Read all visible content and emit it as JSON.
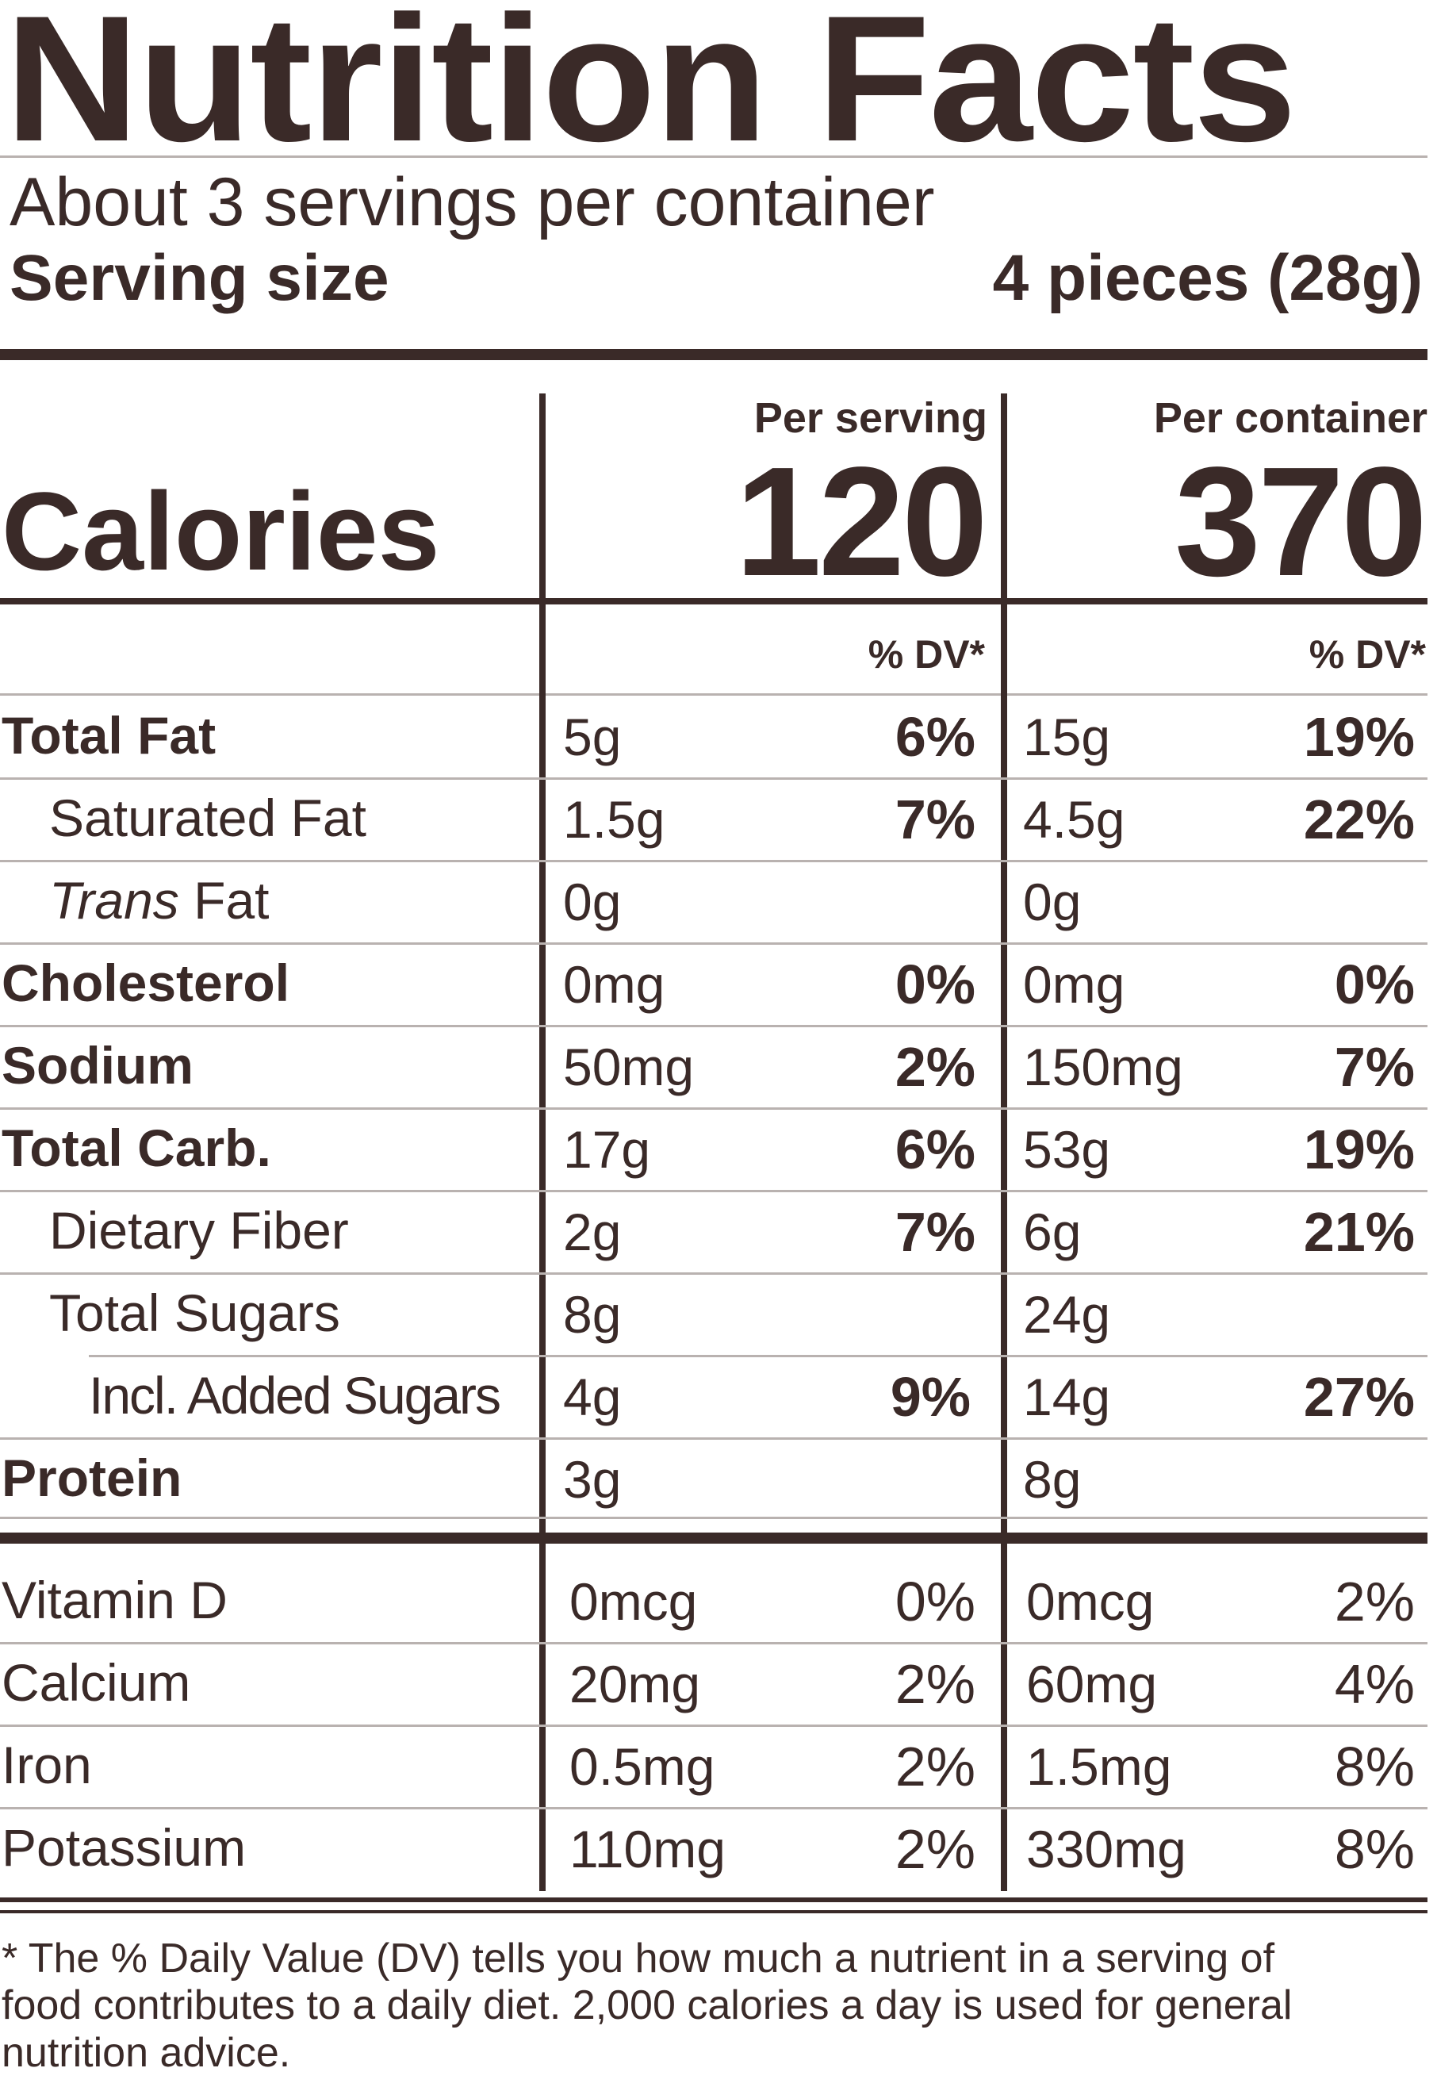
{
  "title": "Nutrition Facts",
  "servings_per_container": "About 3 servings per container",
  "serving_size": {
    "label": "Serving size",
    "value": "4 pieces (28g)"
  },
  "columns": {
    "per_serving": "Per serving",
    "per_container": "Per container",
    "dv": "% DV*"
  },
  "calories": {
    "label": "Calories",
    "per_serving": "120",
    "per_container": "370"
  },
  "nutrients": [
    {
      "name": "Total Fat",
      "serving_amount": "5g",
      "serving_dv": "6%",
      "container_amount": "15g",
      "container_dv": "19%"
    },
    {
      "name": "Saturated Fat",
      "serving_amount": "1.5g",
      "serving_dv": "7%",
      "container_amount": "4.5g",
      "container_dv": "22%"
    },
    {
      "name_italic": "Trans",
      "name_rest": " Fat",
      "serving_amount": "0g",
      "serving_dv": "",
      "container_amount": "0g",
      "container_dv": ""
    },
    {
      "name": "Cholesterol",
      "serving_amount": "0mg",
      "serving_dv": "0%",
      "container_amount": "0mg",
      "container_dv": "0%"
    },
    {
      "name": "Sodium",
      "serving_amount": "50mg",
      "serving_dv": "2%",
      "container_amount": "150mg",
      "container_dv": "7%"
    },
    {
      "name": "Total Carb.",
      "serving_amount": "17g",
      "serving_dv": "6%",
      "container_amount": "53g",
      "container_dv": "19%"
    },
    {
      "name": "Dietary Fiber",
      "serving_amount": "2g",
      "serving_dv": "7%",
      "container_amount": "6g",
      "container_dv": "21%"
    },
    {
      "name": "Total Sugars",
      "serving_amount": "8g",
      "serving_dv": "",
      "container_amount": "24g",
      "container_dv": ""
    },
    {
      "name": "Incl. Added Sugars",
      "serving_amount": "4g",
      "serving_dv": "9%",
      "container_amount": "14g",
      "container_dv": "27%"
    },
    {
      "name": "Protein",
      "serving_amount": "3g",
      "serving_dv": "",
      "container_amount": "8g",
      "container_dv": ""
    }
  ],
  "micronutrients": [
    {
      "name": "Vitamin D",
      "serving_amount": "0mcg",
      "serving_dv": "0%",
      "container_amount": "0mcg",
      "container_dv": "2%"
    },
    {
      "name": "Calcium",
      "serving_amount": "20mg",
      "serving_dv": "2%",
      "container_amount": "60mg",
      "container_dv": "4%"
    },
    {
      "name": "Iron",
      "serving_amount": "0.5mg",
      "serving_dv": "2%",
      "container_amount": "1.5mg",
      "container_dv": "8%"
    },
    {
      "name": "Potassium",
      "serving_amount": "110mg",
      "serving_dv": "2%",
      "container_amount": "330mg",
      "container_dv": "8%"
    }
  ],
  "footnote": "* The % Daily Value (DV) tells you how much a nutrient in a serving of food contributes to a daily diet. 2,000 calories a day is used for general nutrition advice.",
  "colors": {
    "ink": "#3a2a28",
    "rule_light": "#b9b2b0"
  }
}
